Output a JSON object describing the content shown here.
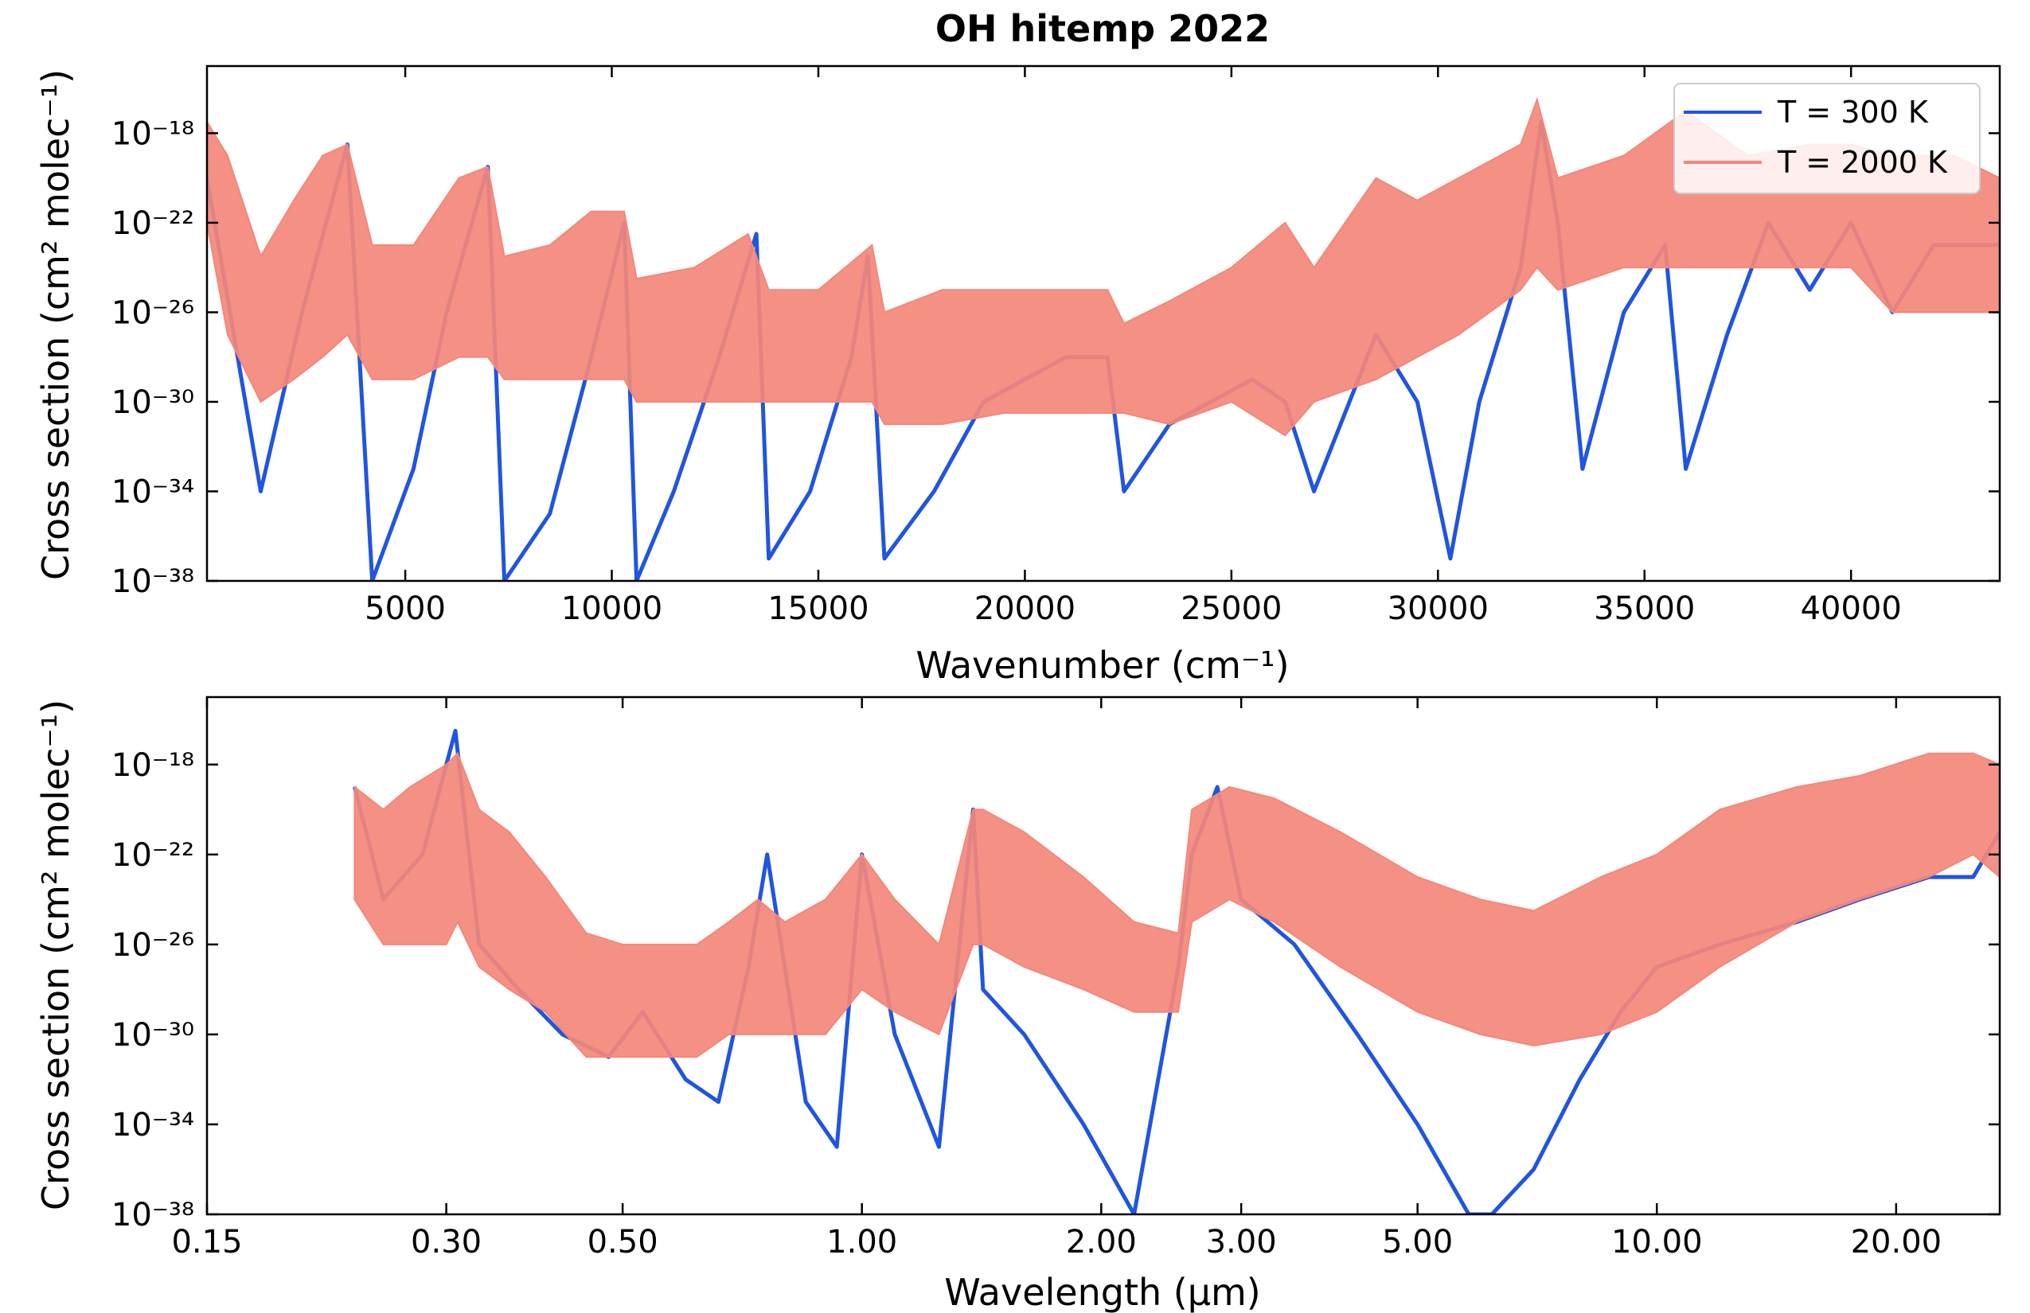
{
  "title": "OH hitemp 2022",
  "colors": {
    "cold": "#1f55e0",
    "hot": "#f4877a"
  },
  "legend": {
    "placement": "top-right",
    "entries": [
      "T = 300 K",
      "T = 2000 K"
    ]
  },
  "chart_data": [
    {
      "type": "line",
      "xlabel": "Wavenumber (cm⁻¹)",
      "ylabel": "Cross section (cm² molec⁻¹)",
      "xscale": "linear",
      "yscale": "log",
      "xlim": [
        200,
        43600
      ],
      "ylim_exponent": [
        -38,
        -15
      ],
      "x_ticks": [
        5000,
        10000,
        15000,
        20000,
        25000,
        30000,
        35000,
        40000
      ],
      "y_ticks": [
        -38,
        -34,
        -30,
        -26,
        -22,
        -18
      ],
      "y_tick_labels": [
        "10⁻³⁸",
        "10⁻³⁴",
        "10⁻³⁰",
        "10⁻²⁶",
        "10⁻²²",
        "10⁻¹⁸"
      ],
      "grid": false,
      "series": [
        {
          "name": "T = 300 K",
          "color": "#1f55e0",
          "x": [
            200,
            1500,
            2500,
            3600,
            4200,
            5200,
            6000,
            7000,
            7400,
            8500,
            9500,
            10300,
            10600,
            11500,
            12600,
            13500,
            13800,
            14800,
            15800,
            16200,
            16600,
            17800,
            19000,
            20000,
            21000,
            22000,
            22400,
            23500,
            24500,
            25500,
            26300,
            27000,
            28500,
            29500,
            30300,
            31000,
            32000,
            32500,
            32900,
            33500,
            34500,
            35500,
            36000,
            37000,
            38000,
            39000,
            40000,
            41000,
            42000,
            43000,
            43600
          ],
          "y_exp": [
            -20,
            -34,
            -26,
            -18.5,
            -38,
            -33,
            -26,
            -19.5,
            -38,
            -35,
            -28,
            -22,
            -38,
            -34,
            -28,
            -22.5,
            -37,
            -34,
            -28,
            -23.5,
            -37,
            -34,
            -30,
            -29,
            -28,
            -28,
            -34,
            -31,
            -30,
            -29,
            -30,
            -34,
            -27,
            -30,
            -37,
            -30,
            -24,
            -17.5,
            -22,
            -33,
            -26,
            -23,
            -33,
            -27,
            -22,
            -25,
            -22,
            -26,
            -23,
            -23,
            -23
          ]
        },
        {
          "name": "T = 2000 K",
          "color": "#f4877a",
          "x": [
            200,
            700,
            1500,
            2300,
            3000,
            3600,
            4200,
            5200,
            6300,
            7000,
            7400,
            8500,
            9500,
            10300,
            10600,
            12000,
            13300,
            13800,
            15000,
            16300,
            16600,
            18000,
            19500,
            21000,
            22000,
            22400,
            23500,
            25000,
            26300,
            27000,
            28500,
            29500,
            30500,
            32000,
            32400,
            32900,
            34500,
            36000,
            37500,
            39000,
            40000,
            41000,
            42500,
            43600
          ],
          "y_upper": [
            -17.5,
            -19,
            -23.5,
            -21,
            -19,
            -18.5,
            -23,
            -23,
            -20,
            -19.5,
            -23.5,
            -23,
            -21.5,
            -21.5,
            -24.5,
            -24,
            -22.5,
            -25,
            -25,
            -23,
            -26,
            -25,
            -25,
            -25,
            -25,
            -26.5,
            -25.5,
            -24,
            -22,
            -24,
            -20,
            -21,
            -20,
            -18.5,
            -16.5,
            -20,
            -19,
            -17,
            -19,
            -18.5,
            -18.5,
            -19,
            -19,
            -20
          ],
          "y_lower": [
            -22,
            -27,
            -30,
            -29,
            -28,
            -27,
            -29,
            -29,
            -28,
            -28,
            -29,
            -29,
            -29,
            -29,
            -30,
            -30,
            -30,
            -30,
            -30,
            -30,
            -31,
            -31,
            -30.5,
            -30.5,
            -30.5,
            -30.5,
            -31,
            -30,
            -31.5,
            -30,
            -29,
            -28,
            -27,
            -25,
            -24,
            -25,
            -24,
            -24,
            -24,
            -24,
            -24,
            -26,
            -26,
            -26
          ]
        }
      ]
    },
    {
      "type": "line",
      "xlabel": "Wavelength (μm)",
      "ylabel": "Cross section (cm² molec⁻¹)",
      "xscale": "log",
      "yscale": "log",
      "xlim": [
        0.15,
        27
      ],
      "ylim_exponent": [
        -38,
        -15
      ],
      "x_ticks": [
        0.15,
        0.3,
        0.5,
        1.0,
        2.0,
        3.0,
        5.0,
        10.0,
        20.0
      ],
      "x_tick_labels": [
        "0.15",
        "0.30",
        "0.50",
        "1.00",
        "2.00",
        "3.00",
        "5.00",
        "10.00",
        "20.00"
      ],
      "y_ticks": [
        -38,
        -34,
        -30,
        -26,
        -22,
        -18
      ],
      "y_tick_labels": [
        "10⁻³⁸",
        "10⁻³⁴",
        "10⁻³⁰",
        "10⁻²⁶",
        "10⁻²²",
        "10⁻¹⁸"
      ],
      "grid": false,
      "series": [
        {
          "name": "T = 300 K",
          "color": "#1f55e0",
          "x": [
            0.23,
            0.25,
            0.28,
            0.308,
            0.33,
            0.37,
            0.42,
            0.48,
            0.53,
            0.6,
            0.66,
            0.72,
            0.76,
            0.85,
            0.93,
            1.0,
            1.1,
            1.25,
            1.38,
            1.42,
            1.6,
            1.9,
            2.2,
            2.5,
            2.6,
            2.8,
            3.0,
            3.5,
            4.2,
            5.0,
            5.8,
            6.2,
            7.0,
            8.0,
            9.0,
            10.0,
            12.0,
            15.0,
            18.0,
            22.0,
            25.0,
            27.0
          ],
          "y_exp": [
            -19,
            -24,
            -22,
            -16.5,
            -26,
            -28,
            -30,
            -31,
            -29,
            -32,
            -33,
            -27,
            -22,
            -33,
            -35,
            -22,
            -30,
            -35,
            -20,
            -28,
            -30,
            -34,
            -38,
            -27,
            -22,
            -19,
            -24,
            -26,
            -30,
            -34,
            -38,
            -38,
            -36,
            -32,
            -29,
            -27,
            -26,
            -25,
            -24,
            -23,
            -23,
            -21
          ]
        },
        {
          "name": "T = 2000 K",
          "color": "#f4877a",
          "x": [
            0.23,
            0.25,
            0.27,
            0.3,
            0.31,
            0.33,
            0.36,
            0.4,
            0.45,
            0.5,
            0.55,
            0.62,
            0.68,
            0.74,
            0.8,
            0.9,
            1.0,
            1.1,
            1.25,
            1.38,
            1.42,
            1.6,
            1.9,
            2.2,
            2.5,
            2.6,
            2.9,
            3.3,
            4.0,
            5.0,
            6.0,
            7.0,
            8.5,
            10.0,
            12.0,
            15.0,
            18.0,
            22.0,
            25.0,
            27.0
          ],
          "y_upper": [
            -19,
            -20,
            -19,
            -18,
            -17.5,
            -20,
            -21,
            -23,
            -25.5,
            -26,
            -26,
            -26,
            -25,
            -24,
            -25,
            -24,
            -22,
            -24,
            -26,
            -20,
            -20,
            -21,
            -23,
            -25,
            -25.5,
            -20,
            -19,
            -19.5,
            -21,
            -23,
            -24,
            -24.5,
            -23,
            -22,
            -20,
            -19,
            -18.5,
            -17.5,
            -17.5,
            -18
          ],
          "y_lower": [
            -24,
            -26,
            -26,
            -26,
            -25,
            -27,
            -28,
            -29,
            -31,
            -31,
            -31,
            -31,
            -30,
            -30,
            -30,
            -30,
            -28,
            -29,
            -30,
            -26,
            -26,
            -27,
            -28,
            -29,
            -29,
            -25,
            -24,
            -25,
            -27,
            -29,
            -30,
            -30.5,
            -30,
            -29,
            -27,
            -25,
            -24,
            -23,
            -22,
            -23
          ]
        }
      ]
    }
  ]
}
